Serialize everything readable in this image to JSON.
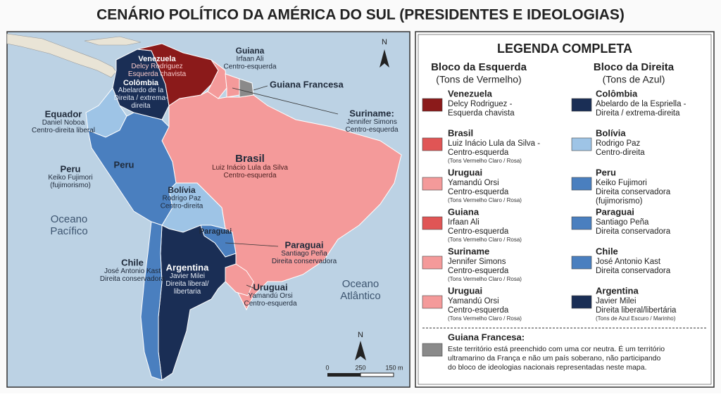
{
  "title": "CENÁRIO POLÍTICO DA AMÉRICA DO SUL (PRESIDENTES E IDEOLOGIAS)",
  "map": {
    "labels": [
      {
        "name": "Venezuela",
        "lines": [
          "Delcy Rodriguez",
          "Esquerda chavista"
        ]
      },
      {
        "name": "Colômbia",
        "lines": [
          "Abelardo de la",
          "Direita / extrema-",
          "direita"
        ]
      },
      {
        "name": "Guiana",
        "lines": [
          "Irfaan Ali",
          "Centro-esquerda"
        ]
      },
      {
        "name": "Guiana Francesa"
      },
      {
        "name": "Suriname:",
        "lines": [
          "Jennifer Simons",
          "Centro-esquerda"
        ]
      },
      {
        "name": "Equador",
        "lines": [
          "Daniel Noboa",
          "Centro-direita liberal"
        ]
      },
      {
        "name": "Peru",
        "lines": [
          "Keiko Fujimori",
          "(fujimorismo)"
        ]
      },
      {
        "name": "Peru"
      },
      {
        "name": "Brasil",
        "lines": [
          "Luiz Inácio Lula da Silva",
          "Centro-esquerda"
        ]
      },
      {
        "name": "Bolívia",
        "lines": [
          "Rodrigo Paz",
          "Centro-direita"
        ]
      },
      {
        "name": "Paraguai"
      },
      {
        "name": "Paraguai",
        "lines": [
          "Santiago Peña",
          "Direita conservadora"
        ]
      },
      {
        "name": "Chile",
        "lines": [
          "José Antonio Kast",
          "Direita conservadora"
        ]
      },
      {
        "name": "Argentina",
        "lines": [
          "Javier Milei",
          "Direita liberal/",
          "libertaria"
        ]
      },
      {
        "name": "Uruguai",
        "lines": [
          "Yamandú Orsi",
          "Centro-esquerda"
        ]
      }
    ],
    "oceans": [
      [
        "Oceano",
        "Pacífico"
      ],
      [
        "Oceano",
        "Atlântico"
      ]
    ],
    "north": "N",
    "scale": [
      "0",
      "250",
      "150 m"
    ]
  },
  "legend": {
    "title": "LEGENDA COMPLETA",
    "columns": [
      {
        "title": "Bloco da Esquerda",
        "subtitle": "(Tons de Vermelho)",
        "items": [
          {
            "name": "Venezuela",
            "lines": [
              "Delcy Rodriguez -",
              "Esquerda chavista"
            ],
            "color": "#8b1a1a"
          },
          {
            "name": "Brasil",
            "lines": [
              "Luiz Inácio Lula da Silva -",
              "Centro-esquerda"
            ],
            "note": "(Tons Vermelho Claro / Rosa)",
            "color": "#e05555"
          },
          {
            "name": "Uruguai",
            "lines": [
              "Yamandú Orsi",
              "Centro-esquerda"
            ],
            "note": "(Tons Vermelho Claro / Rosa)",
            "color": "#f49a9a"
          },
          {
            "name": "Guiana",
            "lines": [
              "Irfaan Ali",
              "Centro-esquerda"
            ],
            "note": "(Tons Vermelho Claro / Rosa)",
            "color": "#e05555"
          },
          {
            "name": "Suriname",
            "lines": [
              "Jennifer Simons",
              "Centro-esquerda"
            ],
            "note": "(Tons Vermelho Claro / Rosa)",
            "color": "#f49a9a"
          },
          {
            "name": "Uruguai",
            "lines": [
              "Yamandú Orsi",
              "Centro-esquerda"
            ],
            "note": "(Tons Vermelho Claro / Rosa)",
            "color": "#f49a9a"
          }
        ]
      },
      {
        "title": "Bloco da Direita",
        "subtitle": "(Tons de Azul)",
        "items": [
          {
            "name": "Colômbia",
            "lines": [
              "Abelardo de la Espriella -",
              "Direita / extrema-direita"
            ],
            "color": "#1a2e55"
          },
          {
            "name": "Bolívia",
            "lines": [
              "Rodrigo Paz",
              "Centro-direita"
            ],
            "color": "#9ec4e6"
          },
          {
            "name": "Peru",
            "lines": [
              "Keiko Fujimori",
              "Direita conservadora",
              "(fujimorismo)"
            ],
            "color": "#4a7fbf"
          },
          {
            "name": "Paraguai",
            "lines": [
              "Santiago Peña",
              "Direita conservadora"
            ],
            "color": "#4a7fbf"
          },
          {
            "name": "Chile",
            "lines": [
              "José Antonio Kast",
              "Direita conservadora"
            ],
            "color": "#4a7fbf"
          },
          {
            "name": "Argentina",
            "lines": [
              "Javier Milei",
              "Direita liberal/libertária"
            ],
            "note": "(Tons de Azul Escuro / Marinho)",
            "color": "#1a2e55"
          }
        ]
      }
    ],
    "note": {
      "title": "Guiana Francesa:",
      "lines": [
        "Este território está preenchido com uma cor neutra. É um território",
        "ultramarino da França e não um país soberano, não participando",
        "do bloco de ideologias nacionais representadas neste mapa."
      ],
      "color": "#8a8a8a"
    }
  }
}
